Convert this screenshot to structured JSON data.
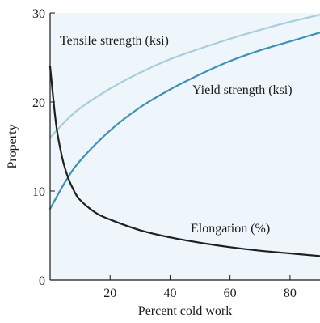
{
  "chart_data": {
    "type": "line",
    "xlabel": "Percent cold work",
    "ylabel": "Property",
    "xlim": [
      0,
      90
    ],
    "ylim": [
      0,
      30
    ],
    "x_ticks": [
      "20",
      "40",
      "60",
      "80"
    ],
    "x_tick_values": [
      20,
      40,
      60,
      80
    ],
    "y_ticks": [
      "0",
      "10",
      "20",
      "30"
    ],
    "y_tick_values": [
      0,
      10,
      20,
      30
    ],
    "grid": false,
    "legend": "none",
    "series": [
      {
        "name": "Tensile strength (ksi)",
        "color": "#a9cfdc",
        "x": [
          0,
          5,
          10,
          20,
          30,
          40,
          50,
          60,
          70,
          80,
          90
        ],
        "y": [
          16,
          17.8,
          19.3,
          21.5,
          23.3,
          24.8,
          26.0,
          27.1,
          28.1,
          29.0,
          29.8
        ]
      },
      {
        "name": "Yield strength (ksi)",
        "color": "#3f92b5",
        "x": [
          0,
          5,
          10,
          20,
          30,
          40,
          50,
          60,
          70,
          80,
          90
        ],
        "y": [
          8,
          11.0,
          13.4,
          16.8,
          19.4,
          21.4,
          23.1,
          24.6,
          25.8,
          26.8,
          27.8
        ]
      },
      {
        "name": "Elongation (%)",
        "color": "#1f1f1f",
        "x": [
          0,
          2,
          4,
          6,
          8,
          10,
          15,
          20,
          30,
          40,
          50,
          60,
          70,
          80,
          90
        ],
        "y": [
          24,
          17.5,
          13.8,
          11.5,
          10.0,
          9.0,
          7.6,
          6.8,
          5.6,
          4.8,
          4.2,
          3.7,
          3.3,
          3.0,
          2.7
        ]
      }
    ]
  }
}
